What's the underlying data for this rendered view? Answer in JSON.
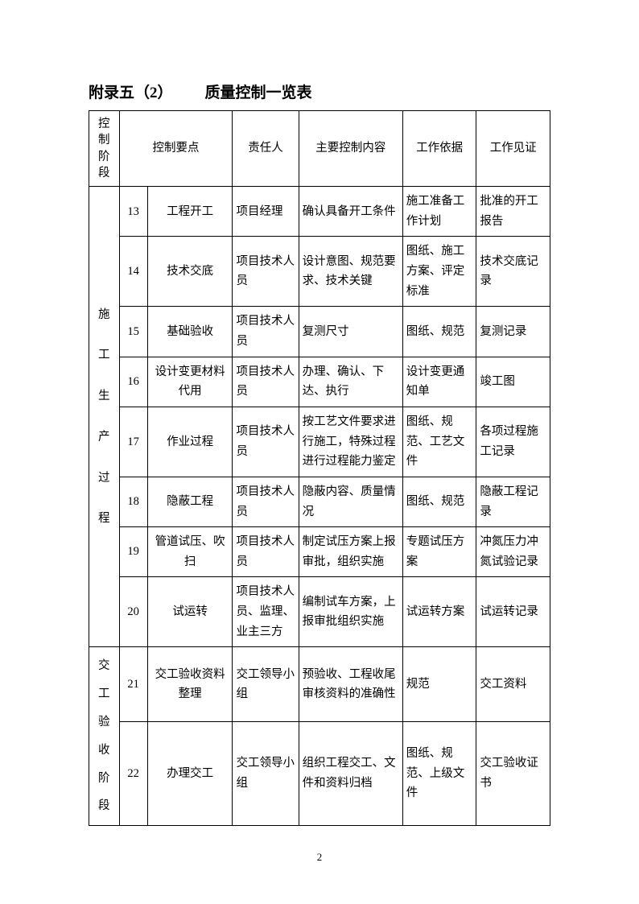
{
  "title_prefix": "附录五（2）",
  "title_main": "质量控制一览表",
  "headers": {
    "stage": "控制阶段",
    "point": "控制要点",
    "person": "责任人",
    "content": "主要控制内容",
    "basis": "工作依据",
    "evidence": "工作见证"
  },
  "stages": {
    "stage1_c1": "施",
    "stage1_c2": "工",
    "stage1_c3": "生",
    "stage1_c4": "产",
    "stage1_c5": "过",
    "stage1_c6": "程",
    "stage2_c1": "交",
    "stage2_c2": "工",
    "stage2_c3": "验",
    "stage2_c4": "收",
    "stage2_c5": "阶",
    "stage2_c6": "段"
  },
  "rows": [
    {
      "num": "13",
      "point": "工程开工",
      "person": "项目经理",
      "content": "确认具备开工条件",
      "basis": "施工准备工作计划",
      "evidence": "批准的开工报告"
    },
    {
      "num": "14",
      "point": "技术交底",
      "person": "项目技术人员",
      "content": "设计意图、规范要求、技术关键",
      "basis": "图纸、施工方案、评定标准",
      "evidence": "技术交底记录"
    },
    {
      "num": "15",
      "point": "基础验收",
      "person": "项目技术人员",
      "content": "复测尺寸",
      "basis": "图纸、规范",
      "evidence": "复测记录"
    },
    {
      "num": "16",
      "point": "设计变更材料代用",
      "person": "项目技术人员",
      "content": "办理、确认、下达、执行",
      "basis": "设计变更通知单",
      "evidence": "竣工图"
    },
    {
      "num": "17",
      "point": "作业过程",
      "person": "项目技术人员",
      "content": "按工艺文件要求进行施工，特殊过程进行过程能力鉴定",
      "basis": "图纸、规范、工艺文件",
      "evidence": "各项过程施工记录"
    },
    {
      "num": "18",
      "point": "隐蔽工程",
      "person": "项目技术人员",
      "content": "隐蔽内容、质量情况",
      "basis": "图纸、规范",
      "evidence": "隐蔽工程记录"
    },
    {
      "num": "19",
      "point": "管道试压、吹扫",
      "person": "项目技术人员",
      "content": "制定试压方案上报审批，组织实施",
      "basis": "专题试压方案",
      "evidence": "冲氮压力冲氮试验记录"
    },
    {
      "num": "20",
      "point": "试运转",
      "person": "项目技术人员、监理、业主三方",
      "content": "编制试车方案，上报审批组织实施",
      "basis": "试运转方案",
      "evidence": "试运转记录"
    },
    {
      "num": "21",
      "point": "交工验收资料整理",
      "person": "交工领导小组",
      "content": "预验收、工程收尾审核资料的准确性",
      "basis": "规范",
      "evidence": "交工资料"
    },
    {
      "num": "22",
      "point": "办理交工",
      "person": "交工领导小组",
      "content": "组织工程交工、文件和资料归档",
      "basis": "图纸、规范、上级文件",
      "evidence": "交工验收证书"
    }
  ],
  "page_number": "2"
}
